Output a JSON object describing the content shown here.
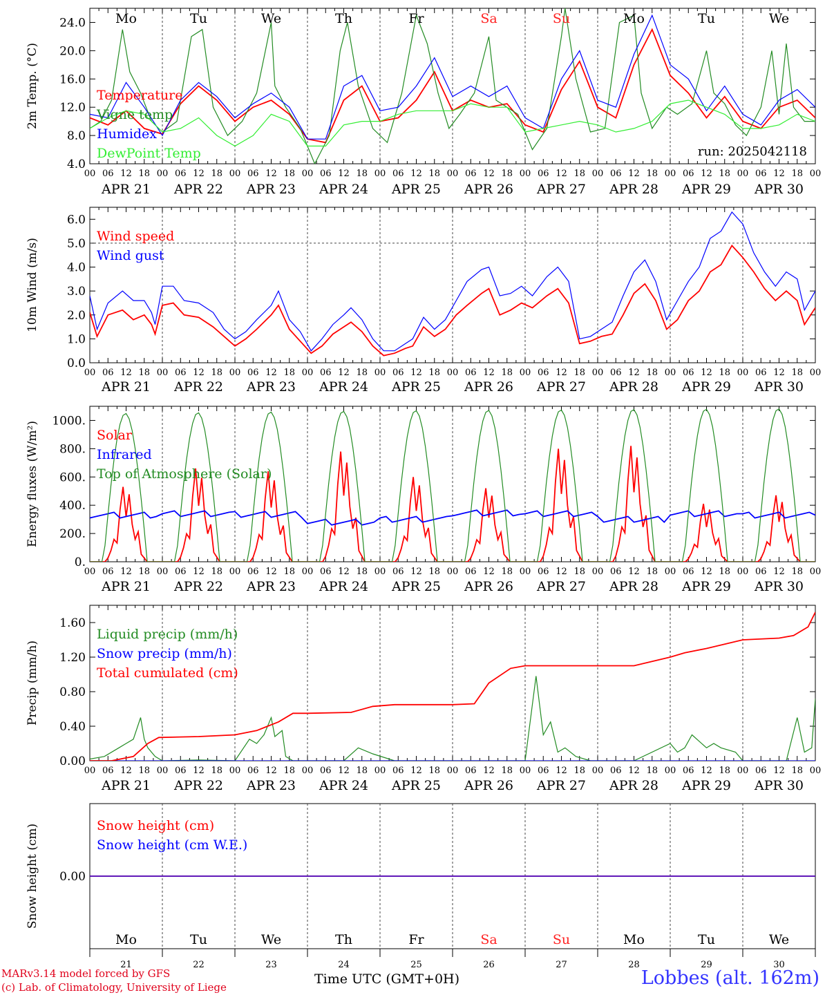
{
  "footer": {
    "credit_line1": "MARv3.14 model forced by GFS",
    "credit_line2": "(c) Lab. of Climatology, University of Liege",
    "xaxis_title": "Time UTC (GMT+0H)",
    "station": "Lobbes (alt. 162m)"
  },
  "colors": {
    "red": "#ff0000",
    "green": "#228B22",
    "blue": "#0000ff",
    "lightgreen": "#33ee33",
    "weekend": "#ff2222"
  },
  "days": {
    "dates": [
      "APR 21",
      "APR 22",
      "APR 23",
      "APR 24",
      "APR 25",
      "APR 26",
      "APR 27",
      "APR 28",
      "APR 29",
      "APR 30"
    ],
    "weekdays": [
      "Mo",
      "Tu",
      "We",
      "Th",
      "Fr",
      "Sa",
      "Su",
      "Mo",
      "Tu",
      "We"
    ],
    "weekend_index": [
      5,
      6
    ],
    "day_numbers": [
      "21",
      "22",
      "23",
      "24",
      "25",
      "26",
      "27",
      "28",
      "29",
      "30"
    ],
    "hour_ticks": [
      "00",
      "06",
      "12",
      "18"
    ],
    "end_tick": "00"
  },
  "chart_data": [
    {
      "type": "line",
      "name": "temperature-panel",
      "ylabel": "2m Temp. (°C)",
      "ylim": [
        4.0,
        26.0
      ],
      "yticks": [
        "4.0",
        "8.0",
        "12.0",
        "16.0",
        "20.0",
        "24.0"
      ],
      "annotation": "run: 2025042118",
      "x_unit": "day index (0 = APR 21 00 UTC)",
      "series": [
        {
          "name": "Temperature",
          "color": "red",
          "x": [
            0,
            0.25,
            0.5,
            0.75,
            1,
            1.25,
            1.5,
            1.75,
            2,
            2.25,
            2.5,
            2.75,
            3,
            3.25,
            3.5,
            3.75,
            4,
            4.25,
            4.5,
            4.75,
            5,
            5.25,
            5.5,
            5.75,
            6,
            6.25,
            6.5,
            6.75,
            7,
            7.25,
            7.5,
            7.75,
            8,
            8.25,
            8.5,
            8.75,
            9,
            9.25,
            9.5,
            9.75,
            10
          ],
          "y": [
            10.5,
            9.5,
            11.5,
            9,
            8.2,
            12.5,
            15,
            13,
            10,
            12,
            13,
            11,
            7.5,
            7,
            13,
            15,
            10,
            10.5,
            13,
            17,
            11.5,
            13,
            12,
            12.5,
            9.5,
            8.5,
            14.5,
            18.5,
            12,
            10.5,
            18,
            23,
            16.5,
            14,
            10.5,
            13.5,
            10,
            9,
            12,
            13,
            10.5
          ]
        },
        {
          "name": "Vigne temp",
          "color": "green",
          "x": [
            0,
            0.15,
            0.3,
            0.45,
            0.55,
            0.7,
            0.85,
            1,
            1.2,
            1.4,
            1.55,
            1.7,
            1.9,
            2.1,
            2.3,
            2.5,
            2.55,
            2.7,
            2.9,
            3.1,
            3.3,
            3.45,
            3.55,
            3.7,
            3.9,
            4.1,
            4.3,
            4.5,
            4.65,
            4.8,
            4.95,
            5.1,
            5.3,
            5.5,
            5.6,
            5.75,
            5.9,
            6.1,
            6.3,
            6.5,
            6.55,
            6.7,
            6.9,
            7.1,
            7.3,
            7.5,
            7.6,
            7.75,
            7.95,
            8.1,
            8.3,
            8.5,
            8.6,
            8.75,
            8.9,
            9.05,
            9.25,
            9.4,
            9.5,
            9.6,
            9.7,
            9.85,
            10
          ],
          "y": [
            9,
            10,
            13,
            23,
            17,
            14,
            10,
            8.5,
            10,
            22,
            23,
            12,
            8,
            10,
            14,
            24,
            15,
            12,
            9,
            4,
            8,
            20,
            24,
            15,
            9,
            7,
            14,
            25,
            21,
            14,
            9,
            11,
            14,
            22,
            13,
            12,
            11,
            6,
            9,
            22,
            26,
            16,
            8.5,
            9,
            24,
            25,
            14,
            9,
            12,
            11,
            12.5,
            20,
            14,
            12.5,
            9.5,
            8,
            12,
            20,
            11,
            21,
            12,
            10,
            10
          ]
        },
        {
          "name": "Humidex",
          "color": "blue",
          "x": [
            0,
            0.25,
            0.5,
            0.75,
            1,
            1.25,
            1.5,
            1.75,
            2,
            2.25,
            2.5,
            2.75,
            3,
            3.25,
            3.5,
            3.75,
            4,
            4.25,
            4.5,
            4.75,
            5,
            5.25,
            5.5,
            5.75,
            6,
            6.25,
            6.5,
            6.75,
            7,
            7.25,
            7.5,
            7.75,
            8,
            8.25,
            8.5,
            8.75,
            9,
            9.25,
            9.5,
            9.75,
            10
          ],
          "y": [
            11,
            10.5,
            15.5,
            12,
            8,
            13,
            15.5,
            13.5,
            10.5,
            12.5,
            14,
            12,
            7.5,
            7.5,
            15,
            16.5,
            11.5,
            12,
            15,
            19,
            13.5,
            15,
            13.5,
            15,
            10.5,
            9,
            16,
            20,
            13,
            12,
            19.5,
            25,
            18,
            16,
            11.5,
            15,
            11,
            9.5,
            13,
            14.5,
            12
          ]
        },
        {
          "name": "DewPoint Temp",
          "color": "lightgreen",
          "x": [
            0,
            0.25,
            0.5,
            0.75,
            1,
            1.25,
            1.5,
            1.75,
            2,
            2.25,
            2.5,
            2.75,
            3,
            3.25,
            3.5,
            3.75,
            4,
            4.25,
            4.5,
            4.75,
            5,
            5.25,
            5.5,
            5.75,
            6,
            6.25,
            6.5,
            6.75,
            7,
            7.25,
            7.5,
            7.75,
            8,
            8.25,
            8.5,
            8.75,
            9,
            9.25,
            9.5,
            9.75,
            10
          ],
          "y": [
            9,
            10.5,
            11.5,
            11,
            8.5,
            9,
            10.5,
            8,
            6.5,
            8,
            11,
            10,
            6.5,
            6.5,
            9.5,
            10,
            10,
            11,
            11.5,
            11.5,
            11.5,
            12.5,
            12,
            12,
            8.5,
            9,
            9.5,
            10,
            9.5,
            8.5,
            9,
            10,
            12.5,
            13,
            12,
            11,
            9,
            9,
            9.5,
            11,
            10
          ]
        }
      ]
    },
    {
      "type": "line",
      "name": "wind-panel",
      "ylabel": "10m Wind (m/s)",
      "ylim": [
        0.0,
        6.5
      ],
      "yticks": [
        "0.0",
        "1.0",
        "2.0",
        "3.0",
        "4.0",
        "5.0",
        "6.0"
      ],
      "reference_line": 5.0,
      "x_unit": "day index (0 = APR 21 00 UTC)",
      "series": [
        {
          "name": "Wind speed",
          "color": "red",
          "x": [
            0,
            0.1,
            0.25,
            0.45,
            0.6,
            0.75,
            0.85,
            0.9,
            1,
            1.15,
            1.3,
            1.5,
            1.7,
            1.85,
            2,
            2.15,
            2.3,
            2.5,
            2.6,
            2.75,
            2.9,
            3.05,
            3.2,
            3.35,
            3.5,
            3.6,
            3.75,
            3.9,
            4.05,
            4.2,
            4.35,
            4.45,
            4.6,
            4.75,
            4.9,
            5.05,
            5.2,
            5.4,
            5.5,
            5.65,
            5.8,
            5.95,
            6.1,
            6.3,
            6.45,
            6.6,
            6.75,
            6.9,
            7.05,
            7.2,
            7.35,
            7.5,
            7.65,
            7.8,
            7.95,
            8.1,
            8.25,
            8.4,
            8.55,
            8.7,
            8.85,
            9.0,
            9.15,
            9.3,
            9.45,
            9.6,
            9.75,
            9.85,
            10
          ],
          "y": [
            2.1,
            1.1,
            2.0,
            2.2,
            1.8,
            2.0,
            1.6,
            1.2,
            2.4,
            2.5,
            2.0,
            1.9,
            1.5,
            1.1,
            0.7,
            1.0,
            1.4,
            2.0,
            2.4,
            1.4,
            0.9,
            0.4,
            0.7,
            1.2,
            1.5,
            1.7,
            1.3,
            0.7,
            0.3,
            0.4,
            0.6,
            0.7,
            1.5,
            1.1,
            1.4,
            2.0,
            2.4,
            2.9,
            3.1,
            2.0,
            2.2,
            2.5,
            2.3,
            2.8,
            3.1,
            2.5,
            0.8,
            0.9,
            1.1,
            1.2,
            2.0,
            2.9,
            3.3,
            2.6,
            1.4,
            1.8,
            2.6,
            3.0,
            3.8,
            4.1,
            4.9,
            4.4,
            3.8,
            3.1,
            2.6,
            3.0,
            2.6,
            1.6,
            2.3
          ]
        },
        {
          "name": "Wind gust",
          "color": "blue",
          "x": [
            0,
            0.1,
            0.25,
            0.45,
            0.6,
            0.75,
            0.85,
            0.9,
            1,
            1.15,
            1.3,
            1.5,
            1.7,
            1.85,
            2,
            2.15,
            2.3,
            2.5,
            2.6,
            2.75,
            2.9,
            3.05,
            3.2,
            3.35,
            3.5,
            3.6,
            3.75,
            3.9,
            4.05,
            4.2,
            4.35,
            4.45,
            4.6,
            4.75,
            4.9,
            5.05,
            5.2,
            5.4,
            5.5,
            5.65,
            5.8,
            5.95,
            6.1,
            6.3,
            6.45,
            6.6,
            6.75,
            6.9,
            7.05,
            7.2,
            7.35,
            7.5,
            7.65,
            7.8,
            7.95,
            8.1,
            8.25,
            8.4,
            8.55,
            8.7,
            8.85,
            9.0,
            9.15,
            9.3,
            9.45,
            9.6,
            9.75,
            9.85,
            10
          ],
          "y": [
            2.8,
            1.4,
            2.5,
            3.0,
            2.6,
            2.6,
            2.1,
            1.6,
            3.2,
            3.2,
            2.6,
            2.5,
            2.1,
            1.4,
            1.0,
            1.3,
            1.8,
            2.4,
            3.0,
            1.8,
            1.3,
            0.5,
            1.0,
            1.6,
            2.0,
            2.3,
            1.8,
            1.0,
            0.5,
            0.5,
            0.8,
            1.0,
            1.9,
            1.4,
            1.8,
            2.6,
            3.4,
            3.9,
            4.0,
            2.8,
            2.9,
            3.2,
            2.8,
            3.6,
            4.0,
            3.4,
            1.0,
            1.1,
            1.4,
            1.7,
            2.8,
            3.8,
            4.3,
            3.4,
            1.8,
            2.6,
            3.4,
            4.0,
            5.2,
            5.5,
            6.3,
            5.8,
            4.6,
            3.8,
            3.2,
            3.8,
            3.5,
            2.2,
            3.0
          ]
        }
      ]
    },
    {
      "type": "line",
      "name": "energy-panel",
      "ylabel": "Energy fluxes (W/m²)",
      "ylim": [
        0,
        1100
      ],
      "yticks": [
        "0.",
        "200.",
        "400.",
        "600.",
        "800.",
        "1000."
      ],
      "x_unit": "day index (0 = APR 21 00 UTC)",
      "series": [
        {
          "name": "Solar",
          "color": "red",
          "daily_peaks": [
            530,
            660,
            640,
            780,
            600,
            520,
            800,
            820,
            410,
            470
          ]
        },
        {
          "name": "Infrared",
          "color": "blue",
          "baseline": [
            330,
            340,
            335,
            280,
            300,
            345,
            340,
            300,
            340,
            330
          ]
        },
        {
          "name": "Top of Atmosphere (Solar)",
          "color": "green",
          "daily_peaks": [
            1050,
            1055,
            1060,
            1065,
            1070,
            1072,
            1075,
            1078,
            1080,
            1083
          ]
        }
      ]
    },
    {
      "type": "line",
      "name": "precip-panel",
      "ylabel": "Precip (mm/h)",
      "ylim": [
        0.0,
        1.8
      ],
      "yticks": [
        "0.00",
        "0.40",
        "0.80",
        "1.20",
        "1.60"
      ],
      "x_unit": "day index (0 = APR 21 00 UTC)",
      "series": [
        {
          "name": "Liquid precip (mm/h)",
          "color": "green",
          "x": [
            0,
            0.2,
            0.4,
            0.5,
            0.6,
            0.7,
            0.75,
            0.8,
            0.9,
            1,
            1.5,
            2,
            2.2,
            2.3,
            2.4,
            2.5,
            2.55,
            2.65,
            2.7,
            2.8,
            2.9,
            3,
            3.5,
            3.7,
            3.9,
            4.2,
            5,
            6,
            6.15,
            6.25,
            6.35,
            6.45,
            6.55,
            6.7,
            6.9,
            7,
            7.5,
            8,
            8.1,
            8.2,
            8.3,
            8.5,
            8.6,
            8.7,
            8.9,
            9,
            9.6,
            9.75,
            9.85,
            9.95,
            10
          ],
          "y": [
            0.02,
            0.05,
            0.15,
            0.2,
            0.25,
            0.5,
            0.25,
            0.15,
            0.05,
            0,
            0.01,
            0,
            0.25,
            0.2,
            0.3,
            0.5,
            0.28,
            0.35,
            0.05,
            0,
            0,
            0,
            0,
            0.15,
            0.08,
            0,
            0,
            0,
            0.98,
            0.3,
            0.45,
            0.1,
            0.15,
            0.05,
            0,
            0,
            0,
            0.2,
            0.1,
            0.15,
            0.3,
            0.15,
            0.2,
            0.15,
            0.1,
            0,
            0,
            0.5,
            0.1,
            0.15,
            0.72
          ]
        },
        {
          "name": "Snow precip (mm/h)",
          "color": "blue",
          "x": [
            0,
            10
          ],
          "y": [
            0,
            0
          ]
        },
        {
          "name": "Total cumulated (cm)",
          "color": "red",
          "x": [
            0,
            0.3,
            0.6,
            0.8,
            0.95,
            1.5,
            2,
            2.3,
            2.6,
            2.8,
            3,
            3.6,
            3.9,
            4.2,
            5,
            5.3,
            5.5,
            5.8,
            6,
            6.5,
            7,
            7.5,
            8,
            8.2,
            8.5,
            9,
            9.5,
            9.7,
            9.9,
            10
          ],
          "y": [
            0,
            0,
            0.05,
            0.2,
            0.27,
            0.28,
            0.3,
            0.35,
            0.45,
            0.55,
            0.55,
            0.56,
            0.63,
            0.65,
            0.65,
            0.66,
            0.9,
            1.07,
            1.1,
            1.1,
            1.1,
            1.1,
            1.2,
            1.25,
            1.3,
            1.4,
            1.42,
            1.45,
            1.55,
            1.72
          ]
        }
      ]
    },
    {
      "type": "line",
      "name": "snow-panel",
      "ylabel": "Snow height (cm)",
      "ylim": [
        -1,
        1
      ],
      "yticks": [
        "0.00"
      ],
      "x_unit": "day index (0 = APR 21 00 UTC)",
      "series": [
        {
          "name": "Snow height (cm)",
          "color": "red",
          "x": [
            0,
            10
          ],
          "y": [
            0,
            0
          ]
        },
        {
          "name": "Snow height (cm W.E.)",
          "color": "blue",
          "x": [
            0,
            10
          ],
          "y": [
            0,
            0
          ]
        }
      ]
    }
  ]
}
